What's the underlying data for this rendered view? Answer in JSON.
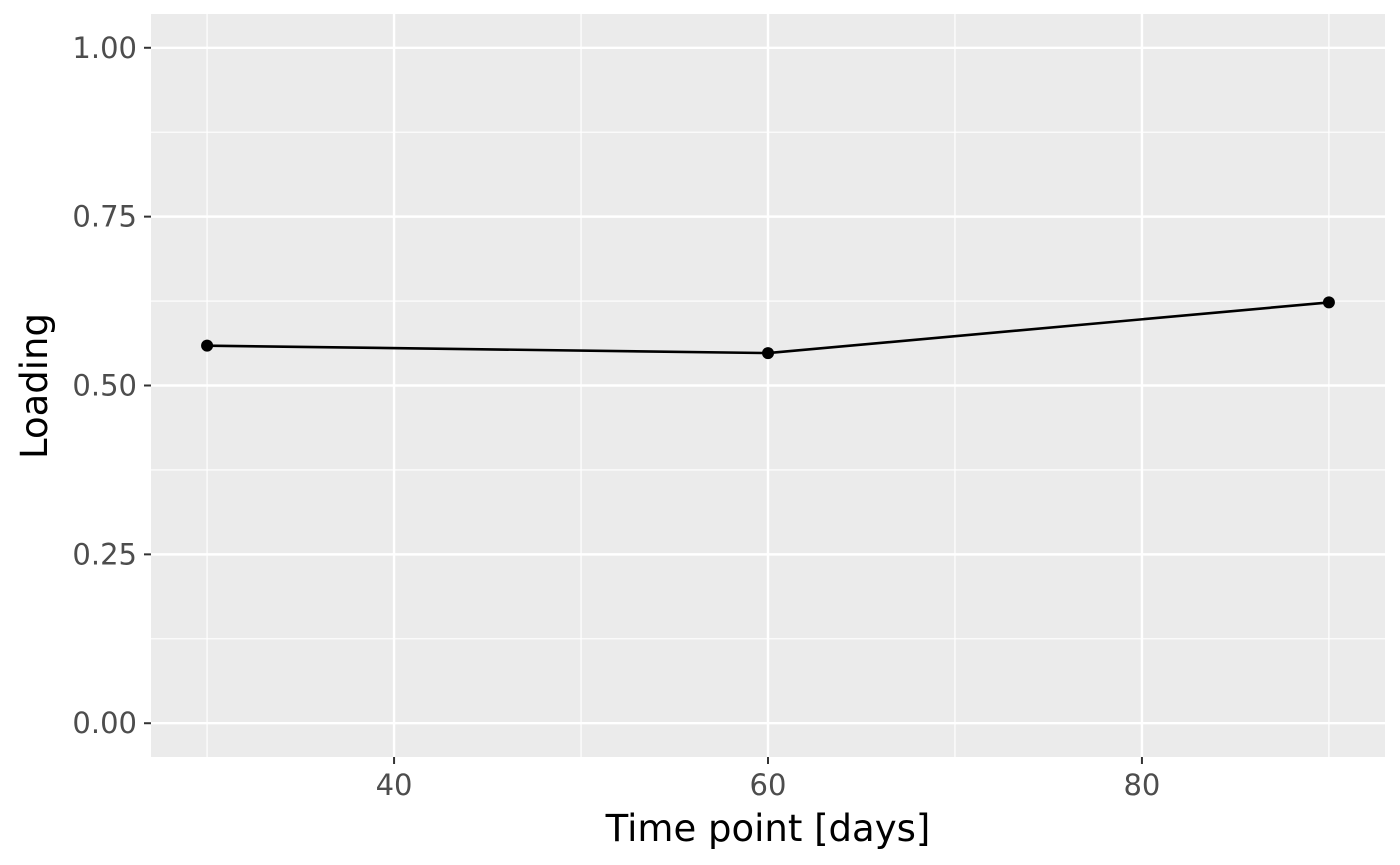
{
  "chart_data": {
    "type": "line",
    "title": "",
    "xlabel": "Time point [days]",
    "ylabel": "Loading",
    "xlim": [
      27,
      93
    ],
    "ylim": [
      -0.05,
      1.05
    ],
    "x_ticks": [
      40,
      60,
      80
    ],
    "x_tick_labels": [
      "40",
      "60",
      "80"
    ],
    "x_minor_ticks": [
      30,
      50,
      70,
      90
    ],
    "y_ticks": [
      0,
      0.25,
      0.5,
      0.75,
      1.0
    ],
    "y_tick_labels": [
      "0.00",
      "0.25",
      "0.50",
      "0.75",
      "1.00"
    ],
    "y_minor_ticks": [
      0.125,
      0.375,
      0.625,
      0.875
    ],
    "grid": true,
    "legend": "none",
    "series": [
      {
        "x": [
          30,
          60,
          90
        ],
        "y": [
          0.559,
          0.548,
          0.623
        ],
        "color": "#000000"
      }
    ],
    "colors": {
      "panel_background": "#ebebeb",
      "grid_line": "#ffffff",
      "tick_label": "#4d4d4d",
      "tick_mark": "#333333"
    }
  }
}
